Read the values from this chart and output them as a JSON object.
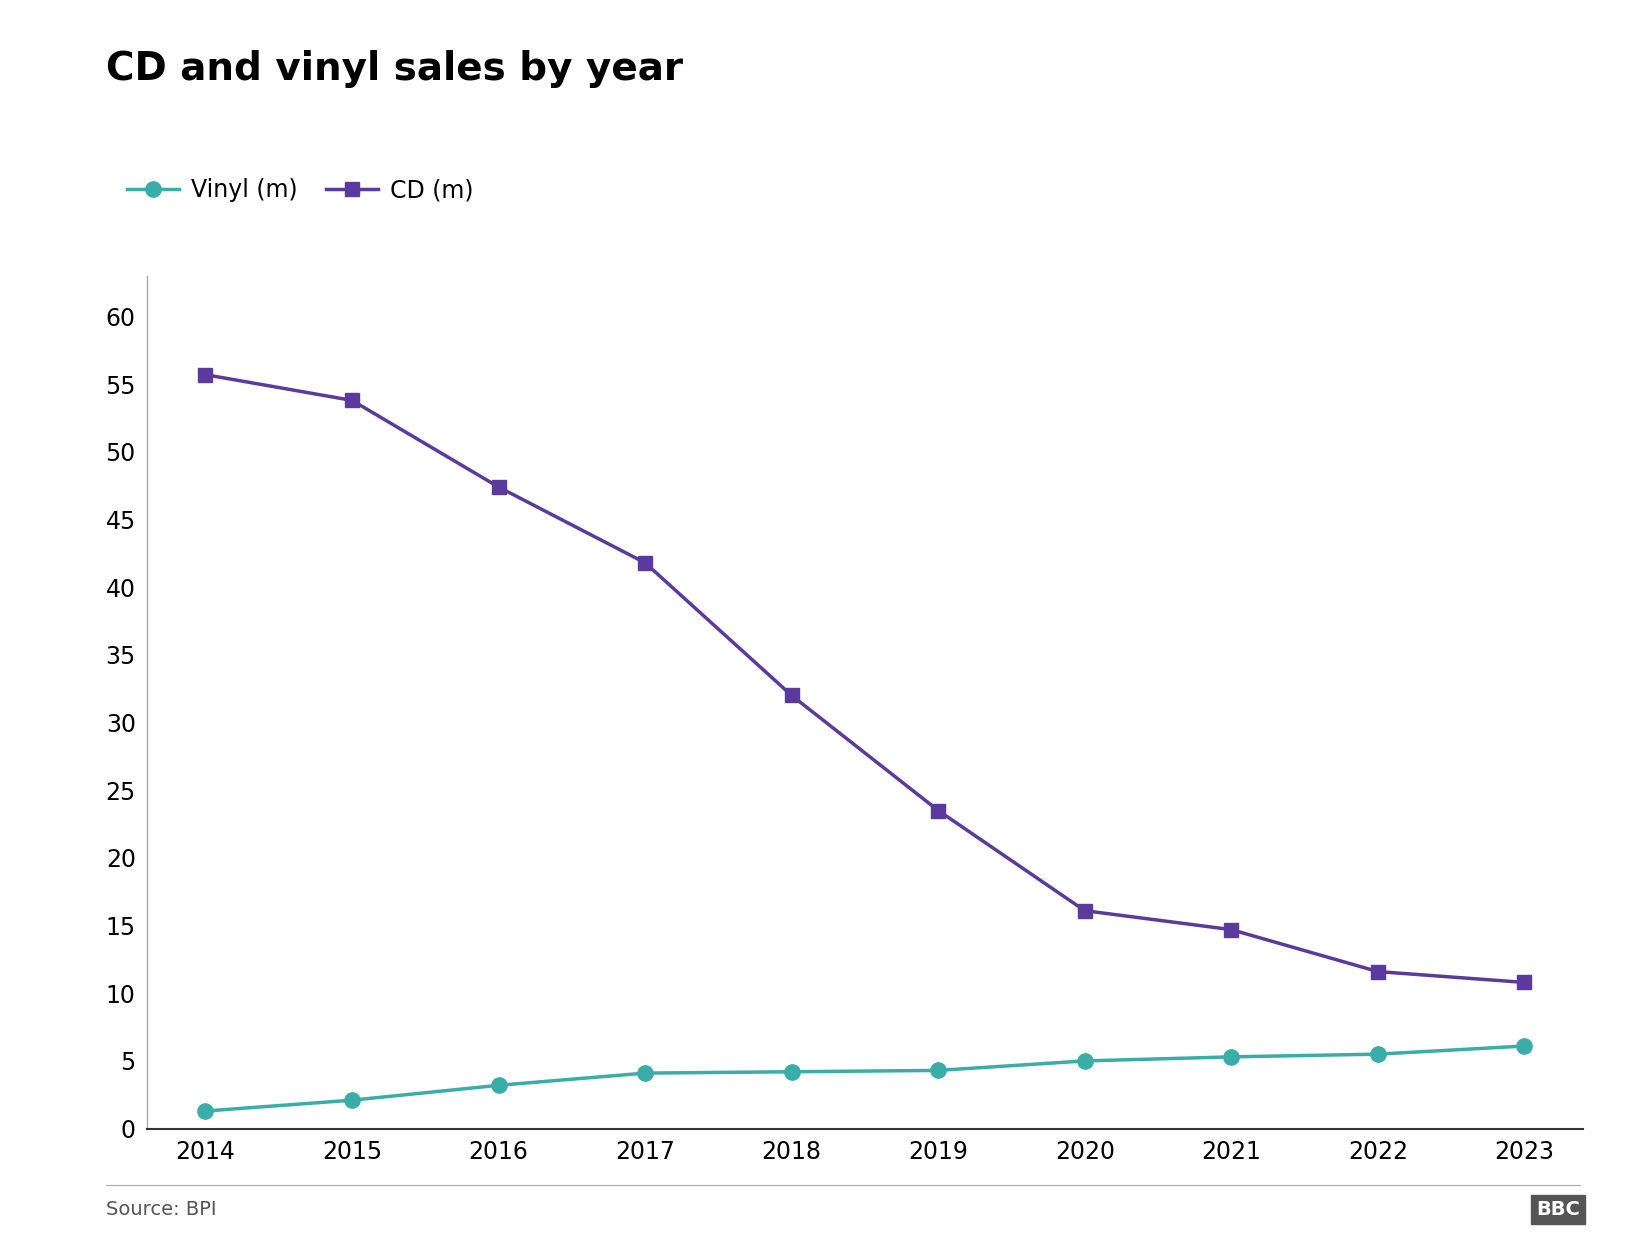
{
  "title": "CD and vinyl sales by year",
  "years": [
    2014,
    2015,
    2016,
    2017,
    2018,
    2019,
    2020,
    2021,
    2022,
    2023
  ],
  "vinyl": [
    1.3,
    2.1,
    3.2,
    4.1,
    4.2,
    4.3,
    5.0,
    5.3,
    5.5,
    6.1
  ],
  "cd": [
    55.7,
    53.8,
    47.4,
    41.8,
    32.0,
    23.5,
    16.1,
    14.7,
    11.6,
    10.8
  ],
  "vinyl_color": "#3aada8",
  "cd_color": "#5b3a9e",
  "ylim": [
    0,
    63
  ],
  "yticks": [
    0,
    5,
    10,
    15,
    20,
    25,
    30,
    35,
    40,
    45,
    50,
    55,
    60
  ],
  "vinyl_label": "Vinyl (m)",
  "cd_label": "CD (m)",
  "source_text": "Source: BPI",
  "bbc_text": "BBC",
  "title_fontsize": 28,
  "tick_fontsize": 17,
  "legend_fontsize": 17,
  "source_fontsize": 14,
  "background_color": "#ffffff",
  "line_width": 2.5,
  "marker_size_vinyl": 11,
  "marker_size_cd": 10,
  "spine_color": "#aaaaaa",
  "bottom_spine_color": "#333333"
}
